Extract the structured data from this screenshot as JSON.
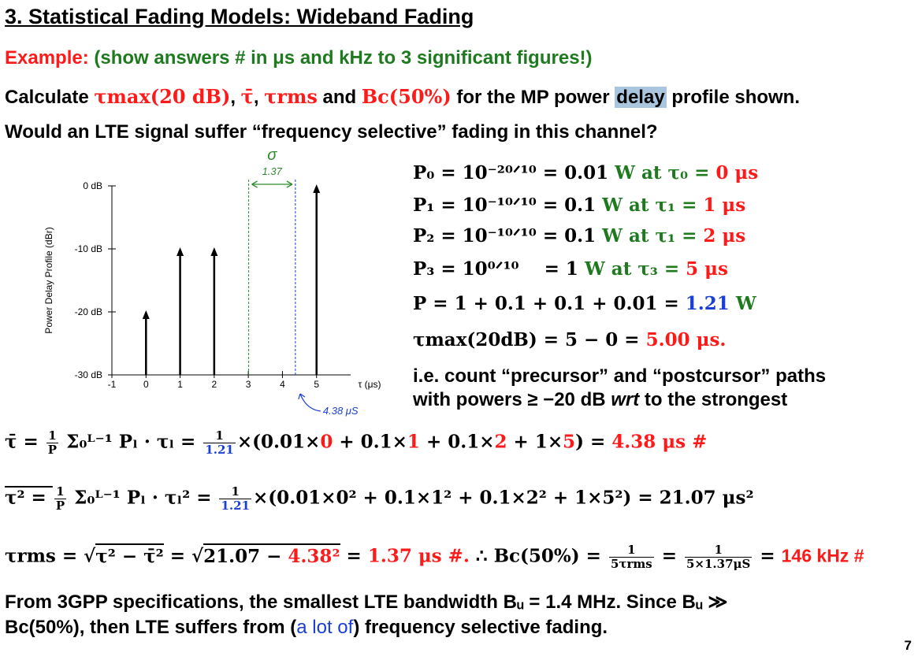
{
  "title": "3. Statistical Fading Models: Wideband Fading",
  "example": {
    "label": "Example:",
    "note": "(show answers # in μs and kHz to 3 significant figures!)"
  },
  "question": {
    "prefix": "Calculate",
    "tau_max": "τmax(20 dB)",
    "tau_bar": "τ̄",
    "tau_rms": "τrms",
    "and": "and",
    "bc": "Bc(50%)",
    "suffix_pre": "for the MP power",
    "highlight": "delay",
    "suffix_post": "profile shown."
  },
  "question2": "Would an LTE signal suffer “frequency selective” fading in this channel?",
  "chart_data": {
    "type": "stem",
    "ylabel": "Power Delay Profile (dBr)",
    "xlabel": "τ (μs)",
    "x_ticks": [
      "-1",
      "0",
      "1",
      "2",
      "3",
      "4",
      "5"
    ],
    "y_ticks": [
      "0 dB",
      "-10 dB",
      "-20 dB",
      "-30 dB"
    ],
    "xlim": [
      -1,
      6
    ],
    "ylim": [
      -30,
      0
    ],
    "points": [
      {
        "x": 0,
        "y": -20
      },
      {
        "x": 1,
        "y": -10
      },
      {
        "x": 2,
        "y": -10
      },
      {
        "x": 5,
        "y": 0
      }
    ],
    "annotations": {
      "sigma": "σ",
      "sigma_value": "1.37",
      "mean_value": "4.38 μS",
      "sigma_lines": [
        3.01,
        4.38
      ]
    }
  },
  "powers": [
    {
      "lhs": "P₀ = 10⁻²⁰ᐟ¹⁰ = 0.01",
      "unit": "W at τ₀ =",
      "val": "0 μs"
    },
    {
      "lhs": "P₁ = 10⁻¹⁰ᐟ¹⁰ = 0.1",
      "unit": "W at τ₁ =",
      "val": "1 μs"
    },
    {
      "lhs": "P₂ = 10⁻¹⁰ᐟ¹⁰ = 0.1",
      "unit": "W at τ₁ =",
      "val": "2 μs"
    },
    {
      "lhs": "P₃ = 10⁰ᐟ¹⁰    = 1",
      "unit": "W at τ₃ =",
      "val": "5 μs"
    }
  ],
  "total_power": {
    "lhs": "P = 1 + 0.1 + 0.1 + 0.01 =",
    "val": "1.21",
    "unit": "W"
  },
  "tau_max_eq": {
    "lhs": "τmax(20dB) = 5 − 0 =",
    "val": "5.00 μs."
  },
  "note": {
    "line1": "i.e. count “precursor” and “postcursor” paths",
    "line2_pre": "with powers ≥ −20 dB",
    "line2_it": "wrt",
    "line2_post": "to the strongest"
  },
  "eq_mean": {
    "lhs": "τ̄ = ",
    "frac1_num": "1",
    "frac1_den": "P",
    "sum": "Σ₀ᴸ⁻¹ Pₗ · τₗ =",
    "frac2_num": "1",
    "frac2_den": "1.21",
    "body_a": "×(0.01×",
    "v0": "0",
    "body_b": " + 0.1×",
    "v1": "1",
    "body_c": " + 0.1×",
    "v2": "2",
    "body_d": " + 1×",
    "v5": "5",
    "body_e": ") =",
    "result": "4.38 μs  #"
  },
  "eq_sq": {
    "lhs": "τ² = ",
    "frac1_num": "1",
    "frac1_den": "P",
    "sum": "Σ₀ᴸ⁻¹ Pₗ · τₗ² =",
    "frac2_num": "1",
    "frac2_den": "1.21",
    "body": "×(0.01×0² + 0.1×1² + 0.1×2² + 1×5²) = 21.07 μs²"
  },
  "eq_rms": {
    "lhs": "τrms = ",
    "sqrt1": "τ² − τ̄²",
    "eq": " = ",
    "sqrt2_a": "21.07 − ",
    "sqrt2_b": "4.38²",
    "eq2": " = ",
    "result": "1.37 μs #.",
    "therefore": " ∴ Bc(50%) = ",
    "frac1_num": "1",
    "frac1_den": "5τrms",
    "eq3": " = ",
    "frac2_num": "1",
    "frac2_den": "5×1.37μS",
    "eq4": " = ",
    "bc_result": "146 kHz #"
  },
  "conclusion": {
    "line1": "From 3GPP specifications, the smallest LTE bandwidth Bᵤ = 1.4 MHz. Since Bᵤ ≫",
    "line2_pre": "Bc(50%), then LTE suffers from (",
    "line2_blue": "a lot of",
    "line2_post": ") frequency selective fading."
  },
  "page_number": "7"
}
